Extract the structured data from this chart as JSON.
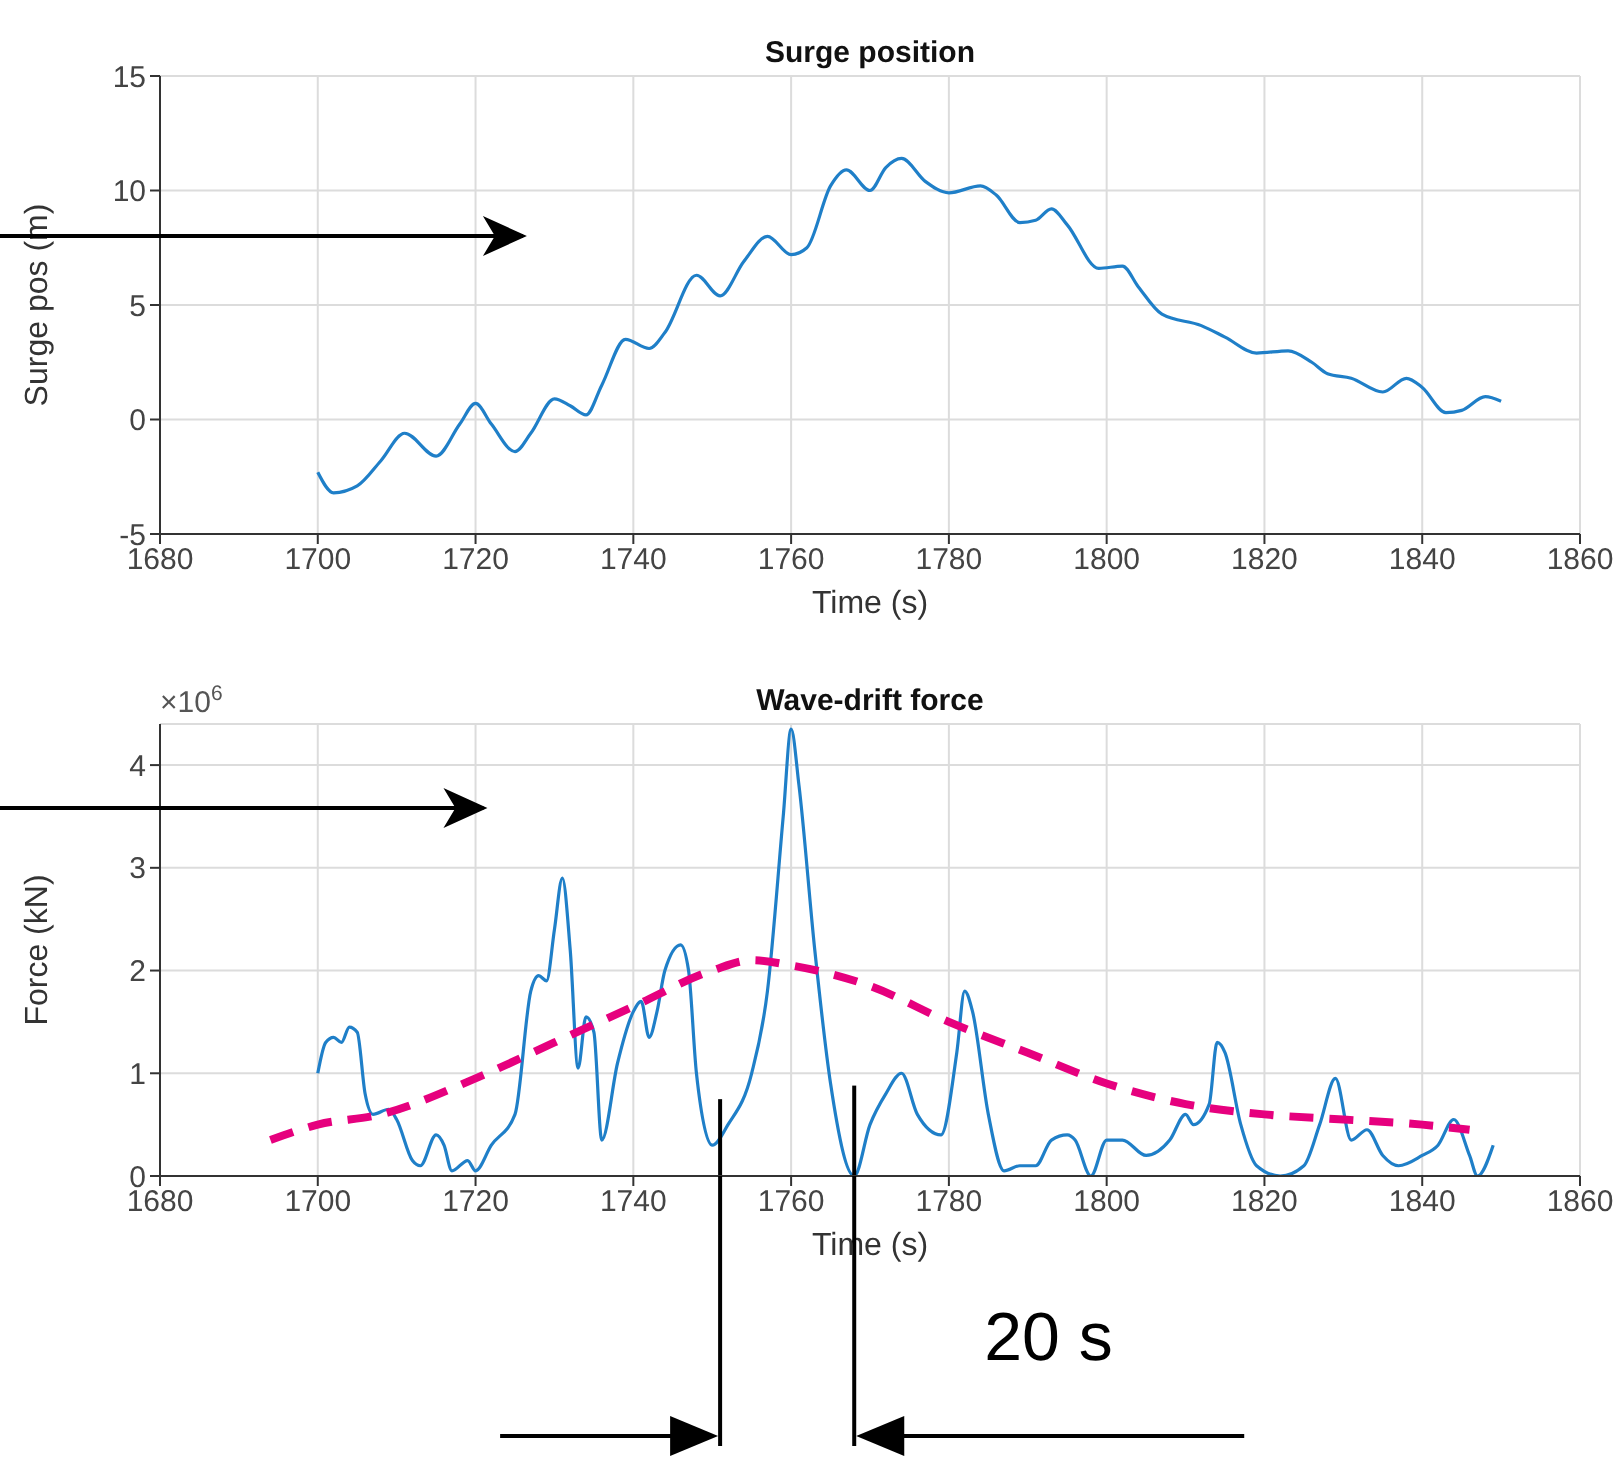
{
  "chart_data": [
    {
      "type": "line",
      "title": "Surge position",
      "xlabel": "Time (s)",
      "ylabel": "Surge pos (m)",
      "xlim": [
        1680,
        1860
      ],
      "xticks": [
        1680,
        1700,
        1720,
        1740,
        1760,
        1780,
        1800,
        1820,
        1840,
        1860
      ],
      "ylim": [
        -5,
        15
      ],
      "yticks": [
        -5,
        0,
        5,
        10,
        15
      ],
      "grid": true,
      "x": [
        1700,
        1702,
        1705,
        1708,
        1711,
        1715,
        1718,
        1720,
        1722,
        1725,
        1727,
        1730,
        1732,
        1734,
        1736,
        1739,
        1742,
        1744,
        1748,
        1751,
        1754,
        1757,
        1760,
        1762,
        1765,
        1767,
        1770,
        1772,
        1774,
        1777,
        1780,
        1784,
        1786,
        1789,
        1791,
        1793,
        1795,
        1799,
        1802,
        1804,
        1807,
        1812,
        1815,
        1819,
        1823,
        1826,
        1828,
        1831,
        1835,
        1838,
        1840,
        1843,
        1845,
        1848,
        1850
      ],
      "series": [
        {
          "color": "#1f7fc8",
          "values": [
            -2.3,
            -3.2,
            -2.9,
            -1.8,
            -0.6,
            -1.6,
            -0.2,
            0.7,
            -0.2,
            -1.4,
            -0.6,
            0.9,
            0.6,
            0.2,
            1.5,
            3.5,
            3.1,
            3.8,
            6.3,
            5.4,
            6.9,
            8.0,
            7.2,
            7.5,
            10.2,
            10.9,
            10.0,
            11.0,
            11.4,
            10.4,
            9.9,
            10.2,
            9.8,
            8.6,
            8.7,
            9.2,
            8.5,
            6.6,
            6.7,
            5.8,
            4.6,
            4.1,
            3.6,
            2.9,
            3.0,
            2.5,
            2.0,
            1.8,
            1.2,
            1.8,
            1.4,
            0.3,
            0.4,
            1.0,
            0.8
          ]
        }
      ]
    },
    {
      "type": "line",
      "title": "Wave-drift force",
      "xlabel": "Time (s)",
      "ylabel": "Force (kN)",
      "xlim": [
        1680,
        1860
      ],
      "xticks": [
        1680,
        1700,
        1720,
        1740,
        1760,
        1780,
        1800,
        1820,
        1840,
        1860
      ],
      "ylim": [
        0,
        4.4
      ],
      "yticks": [
        0,
        1,
        2,
        3,
        4
      ],
      "grid": true,
      "annotations": [
        "×10$^{6}$",
        "20 s"
      ],
      "ref_lines": [
        {
          "axis": "x",
          "value": 1751,
          "color": "#000000"
        },
        {
          "axis": "x",
          "value": 1768,
          "color": "#000000"
        }
      ],
      "series": [
        {
          "color": "#1f7fc8",
          "line_style": "solid",
          "x": [
            1700,
            1701,
            1702,
            1703,
            1704,
            1705,
            1706,
            1707,
            1709,
            1710,
            1712,
            1713,
            1715,
            1716,
            1717,
            1719,
            1720,
            1722,
            1725,
            1727,
            1728,
            1729,
            1730,
            1731,
            1732,
            1733,
            1734,
            1735,
            1736,
            1738,
            1740,
            1741,
            1742,
            1743,
            1744,
            1746,
            1747,
            1748,
            1750,
            1752,
            1755,
            1757,
            1759,
            1760,
            1761,
            1763,
            1765,
            1768,
            1770,
            1772,
            1774,
            1776,
            1779,
            1781,
            1782,
            1783,
            1785,
            1787,
            1789,
            1791,
            1793,
            1795,
            1796,
            1798,
            1800,
            1802,
            1805,
            1808,
            1810,
            1811,
            1813,
            1814,
            1815,
            1817,
            1819,
            1822,
            1825,
            1827,
            1829,
            1831,
            1833,
            1835,
            1837,
            1840,
            1842,
            1844,
            1846,
            1847,
            1849
          ],
          "values": [
            1.0,
            1.3,
            1.35,
            1.3,
            1.45,
            1.4,
            0.8,
            0.6,
            0.65,
            0.55,
            0.15,
            0.1,
            0.4,
            0.3,
            0.05,
            0.15,
            0.05,
            0.3,
            0.6,
            1.8,
            1.95,
            1.9,
            2.4,
            2.9,
            2.2,
            1.05,
            1.55,
            1.4,
            0.35,
            1.1,
            1.6,
            1.7,
            1.35,
            1.6,
            2.0,
            2.25,
            2.0,
            1.0,
            0.3,
            0.5,
            1.0,
            1.8,
            3.5,
            4.35,
            3.8,
            2.2,
            0.9,
            0.0,
            0.5,
            0.8,
            1.0,
            0.6,
            0.4,
            1.2,
            1.8,
            1.6,
            0.6,
            0.05,
            0.1,
            0.1,
            0.35,
            0.4,
            0.35,
            0.0,
            0.35,
            0.35,
            0.2,
            0.35,
            0.6,
            0.5,
            0.7,
            1.3,
            1.2,
            0.5,
            0.1,
            0.0,
            0.1,
            0.5,
            0.95,
            0.35,
            0.45,
            0.2,
            0.1,
            0.2,
            0.3,
            0.55,
            0.2,
            0.0,
            0.3
          ]
        },
        {
          "color": "#e6007e",
          "line_style": "dashed",
          "x": [
            1694,
            1700,
            1708,
            1720,
            1730,
            1740,
            1750,
            1755,
            1760,
            1770,
            1780,
            1790,
            1800,
            1810,
            1820,
            1830,
            1840,
            1846
          ],
          "values": [
            0.35,
            0.5,
            0.6,
            0.95,
            1.3,
            1.65,
            2.0,
            2.1,
            2.05,
            1.85,
            1.5,
            1.2,
            0.9,
            0.7,
            0.6,
            0.55,
            0.5,
            0.45
          ]
        }
      ]
    }
  ]
}
